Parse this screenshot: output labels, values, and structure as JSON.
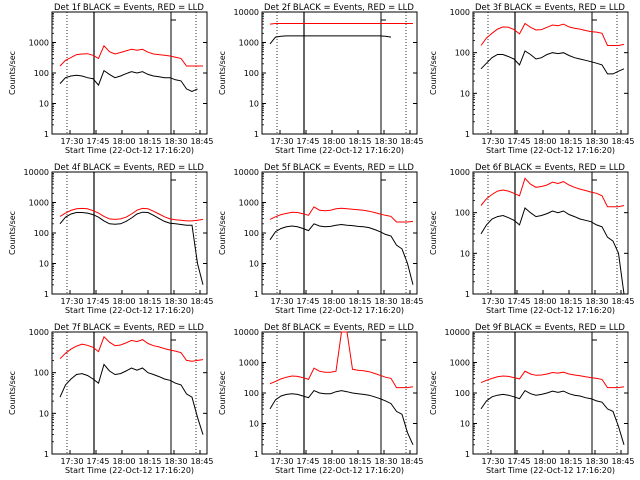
{
  "colors": {
    "events": "#000000",
    "lld": "#ff0000",
    "axis": "#000000"
  },
  "chart_data": [
    {
      "type": "line",
      "title": "Det 1f BLACK = Events, RED = LLD",
      "xlabel": "Start Time (22-Oct-12 17:16:20)",
      "ylabel": "Counts/sec",
      "log_y": true,
      "ylim": [
        1,
        10000
      ],
      "yticks": [
        "1",
        "10",
        "100",
        "1000"
      ],
      "xticks": [
        "17:30",
        "17:45",
        "18:00",
        "18:15",
        "18:30",
        "18:45"
      ],
      "series": [
        {
          "color": "#ff0000",
          "values": [
            170,
            260,
            320,
            400,
            420,
            430,
            380,
            300,
            780,
            500,
            420,
            470,
            530,
            600,
            560,
            600,
            480,
            420,
            400,
            380,
            360,
            330,
            300,
            170,
            170,
            170,
            170
          ]
        },
        {
          "color": "#000000",
          "values": [
            45,
            70,
            80,
            85,
            80,
            70,
            65,
            40,
            120,
            90,
            70,
            80,
            95,
            110,
            100,
            110,
            90,
            80,
            75,
            70,
            70,
            60,
            55,
            30,
            25,
            30,
            0
          ]
        }
      ]
    },
    {
      "type": "line",
      "title": "Det 2f BLACK = Events, RED = LLD",
      "xlabel": "Start Time (22-Oct-12 17:16:20)",
      "ylabel": "Counts/sec",
      "log_y": true,
      "ylim": [
        1,
        10000
      ],
      "yticks": [
        "1",
        "10",
        "100",
        "1000",
        "10000"
      ],
      "xticks": [
        "17:30",
        "17:45",
        "18:00",
        "18:15",
        "18:30",
        "18:45"
      ],
      "series": [
        {
          "color": "#ff0000",
          "values": [
            4000,
            4200,
            4200,
            4200,
            4200,
            4200,
            4200,
            4200,
            4200,
            4200,
            4200,
            4200,
            4200,
            4200,
            4200,
            4200,
            4200,
            4200,
            4200,
            4200,
            4200,
            4200,
            4200,
            4200,
            4200,
            4200,
            4200
          ]
        },
        {
          "color": "#000000",
          "values": [
            900,
            1500,
            1600,
            1650,
            1650,
            1650,
            1650,
            1650,
            1650,
            1650,
            1650,
            1650,
            1650,
            1650,
            1650,
            1650,
            1650,
            1650,
            1650,
            1650,
            1650,
            1600,
            1500,
            0,
            0,
            0,
            0
          ]
        }
      ]
    },
    {
      "type": "line",
      "title": "Det 3f BLACK = Events, RED = LLD",
      "xlabel": "Start Time (22-Oct-12 17:16:20)",
      "ylabel": "Counts/sec",
      "log_y": true,
      "ylim": [
        1,
        1000
      ],
      "yticks": [
        "1",
        "10",
        "100",
        "1000"
      ],
      "xticks": [
        "17:30",
        "17:45",
        "18:00",
        "18:15",
        "18:30",
        "18:45"
      ],
      "series": [
        {
          "color": "#ff0000",
          "values": [
            150,
            230,
            300,
            380,
            430,
            420,
            370,
            290,
            520,
            420,
            360,
            370,
            420,
            480,
            460,
            500,
            430,
            400,
            380,
            350,
            330,
            320,
            300,
            150,
            150,
            150,
            160
          ]
        },
        {
          "color": "#000000",
          "values": [
            40,
            55,
            75,
            90,
            90,
            80,
            70,
            50,
            110,
            90,
            70,
            75,
            90,
            100,
            95,
            100,
            85,
            75,
            70,
            65,
            60,
            55,
            50,
            30,
            30,
            35,
            40
          ]
        }
      ]
    },
    {
      "type": "line",
      "title": "Det 4f BLACK = Events, RED = LLD",
      "xlabel": "Start Time (22-Oct-12 17:16:20)",
      "ylabel": "Counts/sec",
      "log_y": true,
      "ylim": [
        1,
        10000
      ],
      "yticks": [
        "1",
        "10",
        "100",
        "1000",
        "10000"
      ],
      "xticks": [
        "17:30",
        "17:45",
        "18:00",
        "18:15",
        "18:30",
        "18:45"
      ],
      "series": [
        {
          "color": "#ff0000",
          "values": [
            350,
            450,
            550,
            620,
            640,
            620,
            540,
            450,
            350,
            290,
            280,
            290,
            330,
            420,
            560,
            640,
            620,
            520,
            420,
            340,
            290,
            270,
            260,
            250,
            250,
            260,
            280
          ]
        },
        {
          "color": "#000000",
          "values": [
            200,
            330,
            420,
            470,
            470,
            450,
            400,
            330,
            250,
            200,
            195,
            200,
            240,
            310,
            420,
            480,
            470,
            380,
            300,
            240,
            210,
            200,
            190,
            180,
            180,
            10,
            2
          ]
        }
      ]
    },
    {
      "type": "line",
      "title": "Det 5f BLACK = Events, RED = LLD",
      "xlabel": "Start Time (22-Oct-12 17:16:20)",
      "ylabel": "Counts/sec",
      "log_y": true,
      "ylim": [
        1,
        10000
      ],
      "yticks": [
        "1",
        "10",
        "100",
        "1000",
        "10000"
      ],
      "xticks": [
        "17:30",
        "17:45",
        "18:00",
        "18:15",
        "18:30",
        "18:45"
      ],
      "series": [
        {
          "color": "#ff0000",
          "values": [
            280,
            340,
            400,
            440,
            480,
            470,
            430,
            380,
            720,
            560,
            540,
            560,
            620,
            650,
            620,
            600,
            580,
            560,
            520,
            470,
            420,
            380,
            350,
            230,
            230,
            230,
            240
          ]
        },
        {
          "color": "#000000",
          "values": [
            60,
            110,
            140,
            160,
            170,
            160,
            140,
            120,
            200,
            170,
            160,
            165,
            180,
            190,
            180,
            175,
            165,
            160,
            150,
            130,
            110,
            90,
            80,
            40,
            30,
            10,
            2
          ]
        }
      ]
    },
    {
      "type": "line",
      "title": "Det 6f BLACK = Events, RED = LLD",
      "xlabel": "Start Time (22-Oct-12 17:16:20)",
      "ylabel": "Counts/sec",
      "log_y": true,
      "ylim": [
        1,
        1000
      ],
      "yticks": [
        "1",
        "10",
        "100",
        "1000"
      ],
      "xticks": [
        "17:30",
        "17:45",
        "18:00",
        "18:15",
        "18:30",
        "18:45"
      ],
      "series": [
        {
          "color": "#ff0000",
          "values": [
            150,
            220,
            280,
            340,
            360,
            340,
            300,
            260,
            700,
            500,
            420,
            440,
            480,
            560,
            520,
            580,
            480,
            420,
            380,
            350,
            320,
            300,
            260,
            140,
            140,
            140,
            150
          ]
        },
        {
          "color": "#000000",
          "values": [
            30,
            50,
            70,
            80,
            85,
            75,
            65,
            50,
            130,
            100,
            80,
            85,
            95,
            110,
            100,
            110,
            90,
            80,
            70,
            65,
            60,
            50,
            45,
            25,
            20,
            10,
            1
          ]
        }
      ]
    },
    {
      "type": "line",
      "title": "Det 7f BLACK = Events, RED = LLD",
      "xlabel": "Start Time (22-Oct-12 17:16:20)",
      "ylabel": "Counts/sec",
      "log_y": true,
      "ylim": [
        1,
        1000
      ],
      "yticks": [
        "1",
        "10",
        "100",
        "1000"
      ],
      "xticks": [
        "17:30",
        "17:45",
        "18:00",
        "18:15",
        "18:30",
        "18:45"
      ],
      "series": [
        {
          "color": "#ff0000",
          "values": [
            220,
            300,
            380,
            450,
            500,
            470,
            420,
            330,
            760,
            560,
            460,
            480,
            540,
            620,
            580,
            650,
            520,
            460,
            430,
            390,
            360,
            340,
            310,
            200,
            190,
            200,
            210
          ]
        },
        {
          "color": "#000000",
          "values": [
            25,
            50,
            70,
            90,
            95,
            85,
            70,
            55,
            160,
            110,
            90,
            95,
            110,
            130,
            115,
            130,
            100,
            90,
            80,
            70,
            65,
            55,
            50,
            30,
            25,
            8,
            3
          ]
        }
      ]
    },
    {
      "type": "line",
      "title": "Det 8f BLACK = Events, RED = LLD",
      "xlabel": "Start Time (22-Oct-12 17:16:20)",
      "ylabel": "Counts/sec",
      "log_y": true,
      "ylim": [
        1,
        10000
      ],
      "yticks": [
        "1",
        "10",
        "100",
        "1000",
        "10000"
      ],
      "xticks": [
        "17:30",
        "17:45",
        "18:00",
        "18:15",
        "18:30",
        "18:45"
      ],
      "series": [
        {
          "color": "#ff0000",
          "values": [
            200,
            240,
            290,
            330,
            360,
            350,
            320,
            280,
            650,
            520,
            480,
            480,
            520,
            10000,
            10000,
            600,
            560,
            540,
            500,
            440,
            380,
            330,
            300,
            150,
            150,
            150,
            160
          ]
        },
        {
          "color": "#000000",
          "values": [
            30,
            60,
            80,
            90,
            95,
            90,
            80,
            70,
            120,
            100,
            95,
            95,
            110,
            120,
            110,
            100,
            95,
            90,
            85,
            75,
            65,
            55,
            45,
            25,
            20,
            5,
            2
          ]
        }
      ]
    },
    {
      "type": "line",
      "title": "Det 9f BLACK = Events, RED = LLD",
      "xlabel": "Start Time (22-Oct-12 17:16:20)",
      "ylabel": "Counts/sec",
      "log_y": true,
      "ylim": [
        1,
        10000
      ],
      "yticks": [
        "1",
        "10",
        "100",
        "1000",
        "10000"
      ],
      "xticks": [
        "17:30",
        "17:45",
        "18:00",
        "18:15",
        "18:30",
        "18:45"
      ],
      "series": [
        {
          "color": "#ff0000",
          "values": [
            220,
            260,
            300,
            340,
            360,
            350,
            320,
            290,
            520,
            420,
            380,
            390,
            420,
            470,
            450,
            480,
            420,
            390,
            370,
            340,
            320,
            300,
            280,
            150,
            150,
            150,
            160
          ]
        },
        {
          "color": "#000000",
          "values": [
            30,
            55,
            75,
            85,
            90,
            85,
            75,
            65,
            120,
            95,
            85,
            90,
            100,
            115,
            105,
            115,
            95,
            85,
            80,
            70,
            65,
            55,
            50,
            30,
            25,
            8,
            2
          ]
        }
      ]
    }
  ]
}
